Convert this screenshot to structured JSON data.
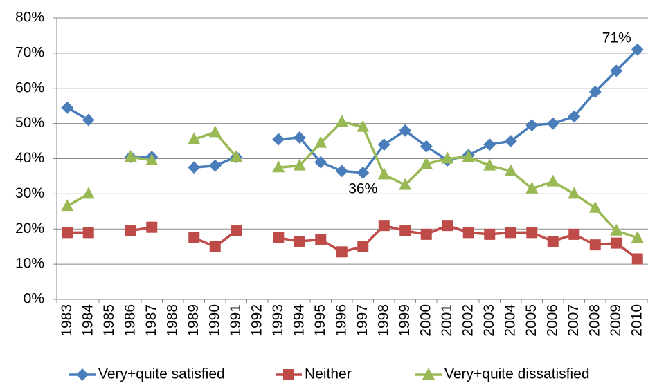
{
  "chart_data": {
    "type": "line",
    "categories": [
      "1983",
      "1984",
      "1985",
      "1986",
      "1987",
      "1988",
      "1989",
      "1990",
      "1991",
      "1992",
      "1993",
      "1994",
      "1995",
      "1996",
      "1997",
      "1998",
      "1999",
      "2000",
      "2001",
      "2002",
      "2003",
      "2004",
      "2005",
      "2006",
      "2007",
      "2008",
      "2009",
      "2010"
    ],
    "series": [
      {
        "name": "Very+quite satisfied",
        "color": "#4a7ebb",
        "marker": "diamond",
        "values": [
          54.5,
          51,
          null,
          40.5,
          40.5,
          null,
          37.5,
          38,
          40.5,
          null,
          45.5,
          46,
          39,
          36.5,
          36,
          44,
          48,
          43.5,
          39.5,
          41,
          44,
          45,
          49.5,
          50,
          52,
          59,
          65,
          71
        ],
        "value_labels": [
          null,
          null,
          null,
          null,
          null,
          null,
          null,
          null,
          null,
          null,
          null,
          null,
          null,
          null,
          "36%",
          null,
          null,
          null,
          null,
          null,
          null,
          null,
          null,
          null,
          null,
          null,
          null,
          "71%"
        ]
      },
      {
        "name": "Neither",
        "color": "#be4b48",
        "marker": "square",
        "values": [
          19,
          19,
          null,
          19.5,
          20.5,
          null,
          17.5,
          15,
          19.5,
          null,
          17.5,
          16.5,
          17,
          13.5,
          15,
          21,
          19.5,
          18.5,
          21,
          19,
          18.5,
          19,
          19,
          16.5,
          18.5,
          15.5,
          16,
          11.5
        ]
      },
      {
        "name": "Very+quite dissatisfied",
        "color": "#98b954",
        "marker": "triangle",
        "values": [
          26.5,
          30,
          null,
          40.5,
          39.5,
          null,
          45.5,
          47.5,
          40.5,
          null,
          37.5,
          38,
          44.5,
          50.5,
          49,
          35.5,
          32.5,
          38.5,
          40,
          40.5,
          38,
          36.5,
          31.5,
          33.5,
          30,
          26,
          19.5,
          17.5
        ]
      }
    ],
    "ylim": [
      0,
      80
    ],
    "yticks": [
      {
        "value": 0,
        "label": "0%"
      },
      {
        "value": 10,
        "label": "10%"
      },
      {
        "value": 20,
        "label": "20%"
      },
      {
        "value": 30,
        "label": "30%"
      },
      {
        "value": 40,
        "label": "40%"
      },
      {
        "value": 50,
        "label": "50%"
      },
      {
        "value": 60,
        "label": "60%"
      },
      {
        "value": 70,
        "label": "70%"
      },
      {
        "value": 80,
        "label": "80%"
      }
    ],
    "grid": true,
    "legend": "bottom"
  }
}
